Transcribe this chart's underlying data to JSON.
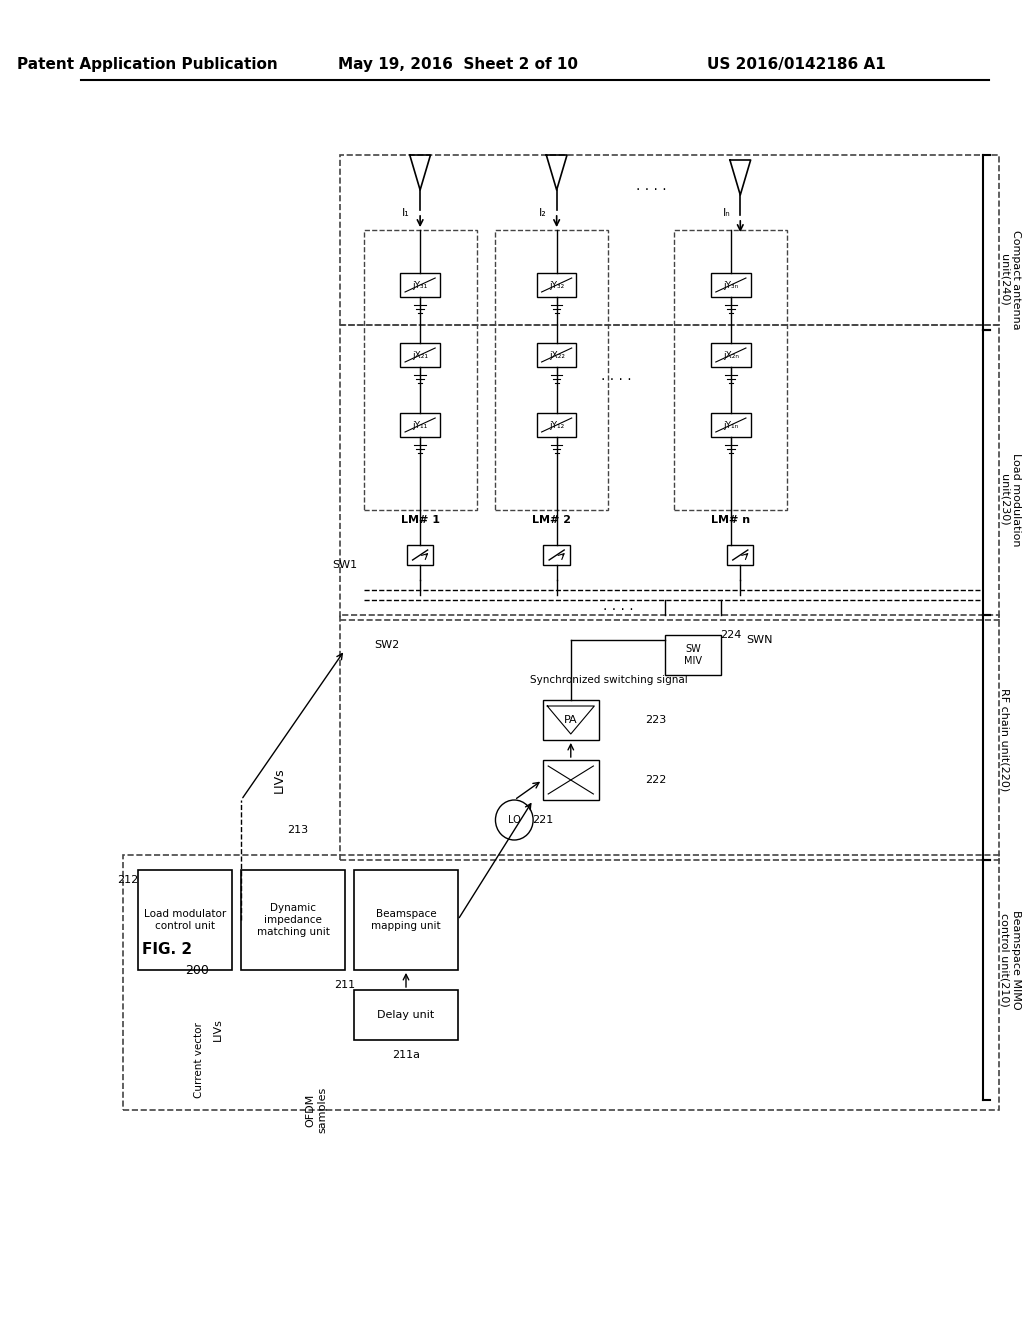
{
  "title_left": "Patent Application Publication",
  "title_mid": "May 19, 2016  Sheet 2 of 10",
  "title_right": "US 2016/0142186 A1",
  "fig_label": "FIG. 2",
  "system_label": "200",
  "background": "#ffffff",
  "text_color": "#000000",
  "box_color": "#000000",
  "dashed_color": "#555555"
}
